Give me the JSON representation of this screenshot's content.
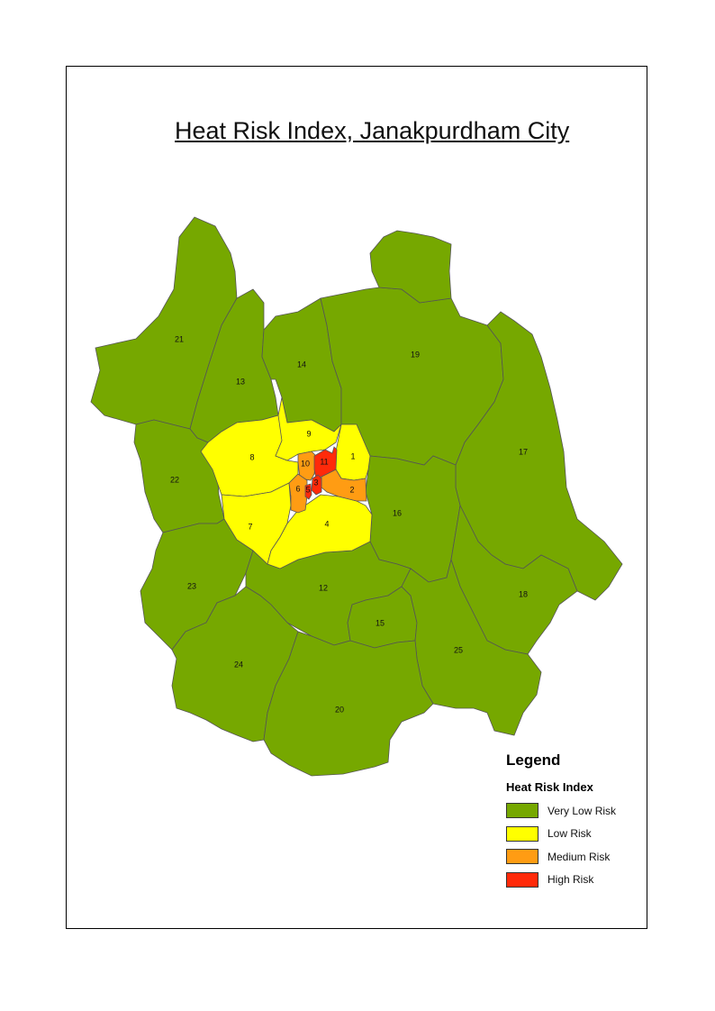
{
  "title": "Heat Risk Index, Janakpurdham City",
  "legend": {
    "heading": "Legend",
    "subheading": "Heat Risk Index",
    "items": [
      {
        "label": "Very Low Risk",
        "color": "#76a800"
      },
      {
        "label": "Low Risk",
        "color": "#ffff00"
      },
      {
        "label": "Medium Risk",
        "color": "#ff9c13"
      },
      {
        "label": "High Risk",
        "color": "#ff2a0a"
      }
    ]
  },
  "colors": {
    "very_low": "#76a800",
    "low": "#ffff00",
    "medium": "#ff9c13",
    "high": "#ff2a0a"
  },
  "wards": [
    {
      "id": "1",
      "risk": "low"
    },
    {
      "id": "2",
      "risk": "medium"
    },
    {
      "id": "3",
      "risk": "high"
    },
    {
      "id": "4",
      "risk": "low"
    },
    {
      "id": "5",
      "risk": "high"
    },
    {
      "id": "6",
      "risk": "medium"
    },
    {
      "id": "7",
      "risk": "low"
    },
    {
      "id": "8",
      "risk": "low"
    },
    {
      "id": "9",
      "risk": "low"
    },
    {
      "id": "10",
      "risk": "medium"
    },
    {
      "id": "11",
      "risk": "high"
    },
    {
      "id": "12",
      "risk": "very_low"
    },
    {
      "id": "13",
      "risk": "very_low"
    },
    {
      "id": "14",
      "risk": "very_low"
    },
    {
      "id": "15",
      "risk": "very_low"
    },
    {
      "id": "16",
      "risk": "very_low"
    },
    {
      "id": "17",
      "risk": "very_low"
    },
    {
      "id": "18",
      "risk": "very_low"
    },
    {
      "id": "19",
      "risk": "very_low"
    },
    {
      "id": "20",
      "risk": "very_low"
    },
    {
      "id": "21",
      "risk": "very_low"
    },
    {
      "id": "22",
      "risk": "very_low"
    },
    {
      "id": "23",
      "risk": "very_low"
    },
    {
      "id": "24",
      "risk": "very_low"
    },
    {
      "id": "25",
      "risk": "very_low"
    }
  ]
}
